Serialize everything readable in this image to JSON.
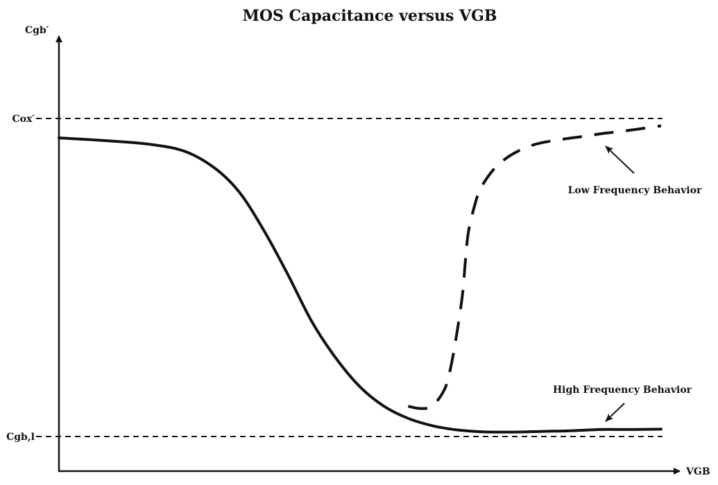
{
  "chart_data": {
    "type": "line",
    "title": "MOS Capacitance versus VGB",
    "xlabel": "VGB",
    "ylabel": "Cgb′",
    "xlim": [
      0,
      100
    ],
    "ylim": [
      0,
      100
    ],
    "grid": false,
    "reference_lines": [
      {
        "label": "Cox′",
        "y": 100,
        "style": "dashed"
      },
      {
        "label": "Cgb,l",
        "y": 0,
        "style": "dashed"
      }
    ],
    "series": [
      {
        "style": "solid",
        "x": [
          0,
          8,
          15,
          21,
          26,
          30,
          34,
          38,
          42,
          46,
          50,
          54,
          58,
          62,
          66,
          70,
          75,
          80,
          85,
          90,
          95,
          100
        ],
        "y": [
          93.9,
          93.0,
          91.9,
          89.6,
          84.2,
          76.7,
          64.9,
          51.0,
          36.1,
          24.6,
          15.6,
          9.5,
          5.7,
          3.4,
          2.1,
          1.5,
          1.4,
          1.6,
          1.8,
          2.2,
          2.2,
          2.3
        ]
      },
      {
        "style": "dashed",
        "x": [
          58,
          60,
          62,
          64,
          65,
          66,
          67,
          67.5,
          68,
          69,
          70,
          72,
          74,
          76,
          78,
          80,
          83,
          86,
          88,
          90,
          94,
          100
        ],
        "y": [
          9.5,
          8.8,
          9.6,
          14.7,
          21.2,
          31.6,
          44.5,
          55.3,
          64.3,
          72.4,
          77.9,
          83.6,
          87.1,
          89.5,
          91.2,
          92.3,
          93.3,
          94.1,
          94.6,
          95.2,
          96.1,
          97.7
        ]
      }
    ],
    "annotations": [
      {
        "text": "Low Frequency Behavior",
        "x": 90,
        "y": 93.5
      },
      {
        "text": "High Frequency Behavior",
        "x": 90,
        "y": 4
      }
    ]
  }
}
